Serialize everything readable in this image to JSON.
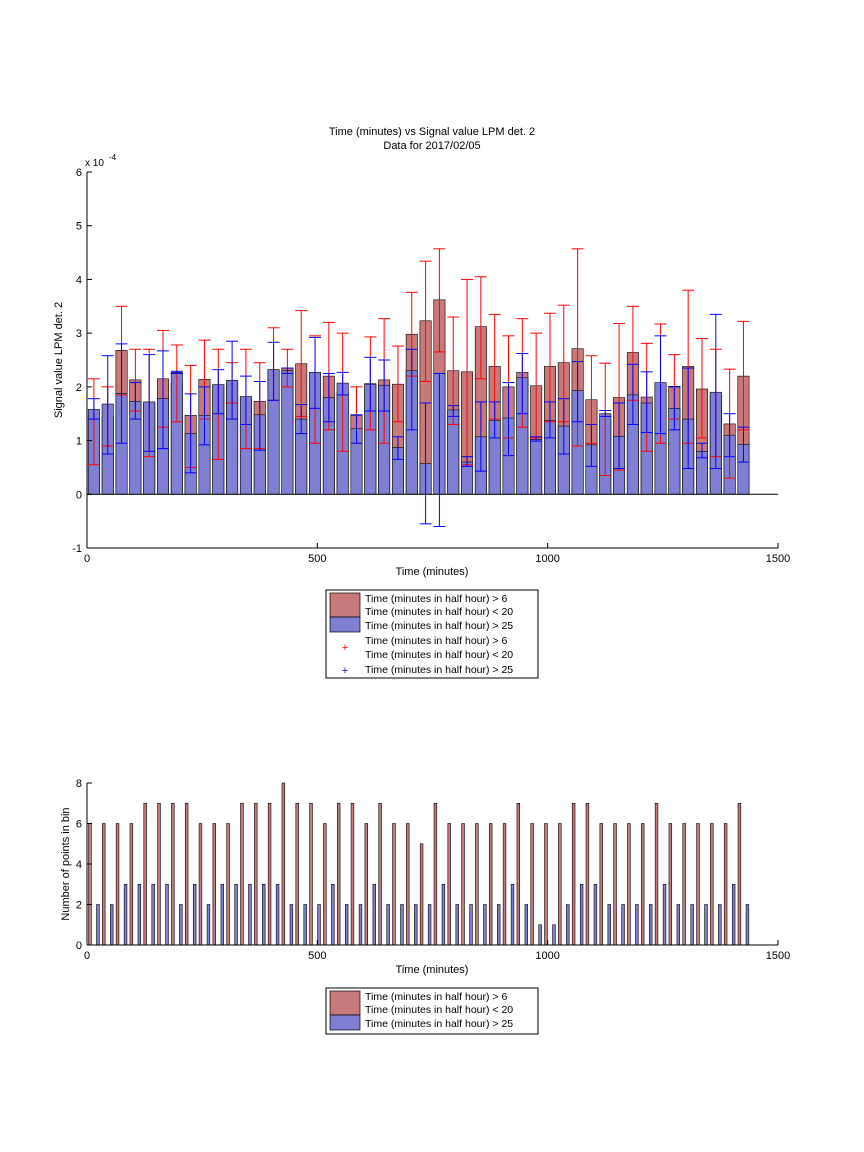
{
  "chart_data": [
    {
      "type": "bar",
      "title": "Time (minutes) vs Signal value LPM det. 2",
      "subtitle": "Data for 2017/02/05",
      "xlabel": "Time (minutes)",
      "ylabel": "Signal value LPM det. 2",
      "exponent_label": "x 10",
      "exponent_power": "-4",
      "xlim": [
        0,
        1500
      ],
      "ylim": [
        -1,
        6
      ],
      "xticks": [
        "0",
        "500",
        "1000",
        "1500"
      ],
      "yticks": [
        "-1",
        "0",
        "1",
        "2",
        "3",
        "4",
        "5",
        "6"
      ],
      "bin_centers": [
        15,
        45,
        75,
        105,
        135,
        165,
        195,
        225,
        255,
        285,
        315,
        345,
        375,
        405,
        435,
        465,
        495,
        525,
        555,
        585,
        615,
        645,
        675,
        705,
        735,
        765,
        795,
        825,
        855,
        885,
        915,
        945,
        975,
        1005,
        1035,
        1065,
        1095,
        1125,
        1155,
        1185,
        1215,
        1245,
        1275,
        1305,
        1335,
        1365,
        1395,
        1425
      ],
      "series": [
        {
          "name": "Time (minutes in half hour) > 6\nTime (minutes in half hour) < 20",
          "color": "#c87a7a",
          "errcolor": "#ff0000",
          "values": [
            1.35,
            1.45,
            2.68,
            2.13,
            1.7,
            2.15,
            2.07,
            1.47,
            2.14,
            2.04,
            2.06,
            1.8,
            1.73,
            2.32,
            2.35,
            2.43,
            1.95,
            2.2,
            1.9,
            1.47,
            2.06,
            2.13,
            2.05,
            2.98,
            3.23,
            3.62,
            2.3,
            2.28,
            3.12,
            2.38,
            2.0,
            2.27,
            2.02,
            2.38,
            2.45,
            2.71,
            1.76,
            1.38,
            1.8,
            2.64,
            1.81,
            2.07,
            2.01,
            2.38,
            1.96,
            1.86,
            1.31,
            2.2
          ],
          "err_low": [
            0.55,
            0.9,
            1.85,
            1.55,
            0.7,
            1.25,
            1.35,
            0.5,
            1.4,
            0.65,
            1.7,
            0.85,
            0.85,
            1.75,
            2.0,
            1.45,
            0.95,
            1.2,
            0.8,
            0.95,
            1.2,
            0.95,
            1.35,
            2.2,
            2.1,
            2.65,
            1.3,
            0.55,
            2.15,
            1.4,
            1.05,
            1.25,
            1.05,
            1.35,
            1.35,
            0.9,
            0.95,
            0.35,
            0.45,
            1.75,
            0.8,
            0.95,
            1.4,
            0.95,
            1.05,
            0.7,
            0.3,
            1.2
          ],
          "err_high": [
            2.15,
            2.0,
            3.5,
            2.7,
            2.7,
            3.05,
            2.78,
            2.4,
            2.87,
            2.7,
            2.45,
            2.7,
            2.45,
            3.1,
            2.7,
            3.42,
            2.95,
            3.2,
            3.0,
            2.0,
            2.93,
            3.27,
            2.76,
            3.76,
            4.34,
            4.57,
            3.3,
            4.0,
            4.05,
            3.35,
            2.95,
            3.27,
            3.0,
            3.37,
            3.52,
            4.57,
            2.58,
            2.44,
            3.18,
            3.5,
            2.81,
            3.17,
            2.6,
            3.8,
            2.9,
            2.7,
            2.33,
            3.22
          ]
        },
        {
          "name": "Time (minutes in half hour) > 25",
          "color": "#7f7fd4",
          "errcolor": "#0000ff",
          "values": [
            1.58,
            1.68,
            1.88,
            1.73,
            1.72,
            1.78,
            2.27,
            1.13,
            1.47,
            2.04,
            2.12,
            1.82,
            1.48,
            2.32,
            2.3,
            1.4,
            2.27,
            1.8,
            2.07,
            1.22,
            2.05,
            2.03,
            0.87,
            2.3,
            0.57,
            2.25,
            1.57,
            0.6,
            1.07,
            1.37,
            1.42,
            2.17,
            1.02,
            1.37,
            1.27,
            1.93,
            0.92,
            1.5,
            1.08,
            1.85,
            1.7,
            2.08,
            1.6,
            1.4,
            0.8,
            1.9,
            1.1,
            0.93
          ],
          "err_low": [
            1.4,
            0.75,
            0.95,
            1.4,
            0.8,
            0.85,
            2.25,
            0.4,
            0.92,
            1.5,
            1.4,
            1.3,
            0.82,
            1.75,
            2.25,
            1.13,
            1.6,
            1.35,
            1.85,
            0.95,
            1.55,
            1.55,
            0.65,
            1.2,
            -0.55,
            -0.6,
            1.45,
            0.52,
            0.43,
            1.05,
            0.72,
            1.5,
            0.99,
            1.05,
            0.75,
            1.35,
            0.52,
            1.45,
            0.48,
            1.3,
            1.15,
            1.13,
            1.2,
            0.48,
            0.68,
            0.48,
            0.7,
            0.6
          ],
          "err_high": [
            1.78,
            2.58,
            2.8,
            2.08,
            2.6,
            2.67,
            2.29,
            1.87,
            2.0,
            2.32,
            2.85,
            2.2,
            2.1,
            2.83,
            2.35,
            1.67,
            2.92,
            2.25,
            2.27,
            1.48,
            2.55,
            2.5,
            1.07,
            2.7,
            1.7,
            2.25,
            1.65,
            0.7,
            1.72,
            1.72,
            2.08,
            2.62,
            1.07,
            1.72,
            1.78,
            2.47,
            1.3,
            1.56,
            1.7,
            2.42,
            2.28,
            2.95,
            2.0,
            2.35,
            0.95,
            3.35,
            1.5,
            1.25
          ]
        }
      ],
      "legend_entries": [
        "Time (minutes in half hour) > 6",
        "Time (minutes in half hour) < 20",
        "Time (minutes in half hour) > 25",
        "Time (minutes in half hour) > 6",
        "Time (minutes in half hour) < 20",
        "Time (minutes in half hour) > 25"
      ],
      "legend_placement": "below-axes",
      "grid": false
    },
    {
      "type": "bar",
      "xlabel": "Time (minutes)",
      "ylabel": "Number of points in bin",
      "xlim": [
        0,
        1500
      ],
      "ylim": [
        0,
        8
      ],
      "xticks": [
        "0",
        "500",
        "1000",
        "1500"
      ],
      "yticks": [
        "0",
        "2",
        "4",
        "6",
        "8"
      ],
      "bin_centers": [
        15,
        45,
        75,
        105,
        135,
        165,
        195,
        225,
        255,
        285,
        315,
        345,
        375,
        405,
        435,
        465,
        495,
        525,
        555,
        585,
        615,
        645,
        675,
        705,
        735,
        765,
        795,
        825,
        855,
        885,
        915,
        945,
        975,
        1005,
        1035,
        1065,
        1095,
        1125,
        1155,
        1185,
        1215,
        1245,
        1275,
        1305,
        1335,
        1365,
        1395,
        1425
      ],
      "series": [
        {
          "name": "Time (minutes in half hour) > 6\nTime (minutes in half hour) < 20",
          "color": "#c87a7a",
          "values": [
            6,
            6,
            6,
            6,
            7,
            7,
            7,
            7,
            6,
            6,
            6,
            7,
            7,
            7,
            8,
            7,
            7,
            6,
            7,
            7,
            6,
            7,
            6,
            6,
            5,
            7,
            6,
            6,
            6,
            6,
            6,
            7,
            6,
            6,
            6,
            7,
            7,
            6,
            6,
            6,
            6,
            7,
            6,
            6,
            6,
            6,
            6,
            7
          ]
        },
        {
          "name": "Time (minutes in half hour) > 25",
          "color": "#7f7fd4",
          "values": [
            2,
            2,
            3,
            3,
            3,
            3,
            2,
            3,
            2,
            3,
            3,
            3,
            3,
            3,
            2,
            2,
            2,
            3,
            2,
            2,
            3,
            2,
            2,
            2,
            2,
            3,
            2,
            2,
            2,
            2,
            3,
            2,
            1,
            1,
            2,
            3,
            3,
            2,
            2,
            2,
            2,
            3,
            2,
            2,
            2,
            2,
            3,
            2
          ]
        }
      ],
      "legend_entries": [
        "Time (minutes in half hour) > 6",
        "Time (minutes in half hour) < 20",
        "Time (minutes in half hour) > 25"
      ],
      "legend_placement": "below-axes",
      "grid": false
    }
  ]
}
